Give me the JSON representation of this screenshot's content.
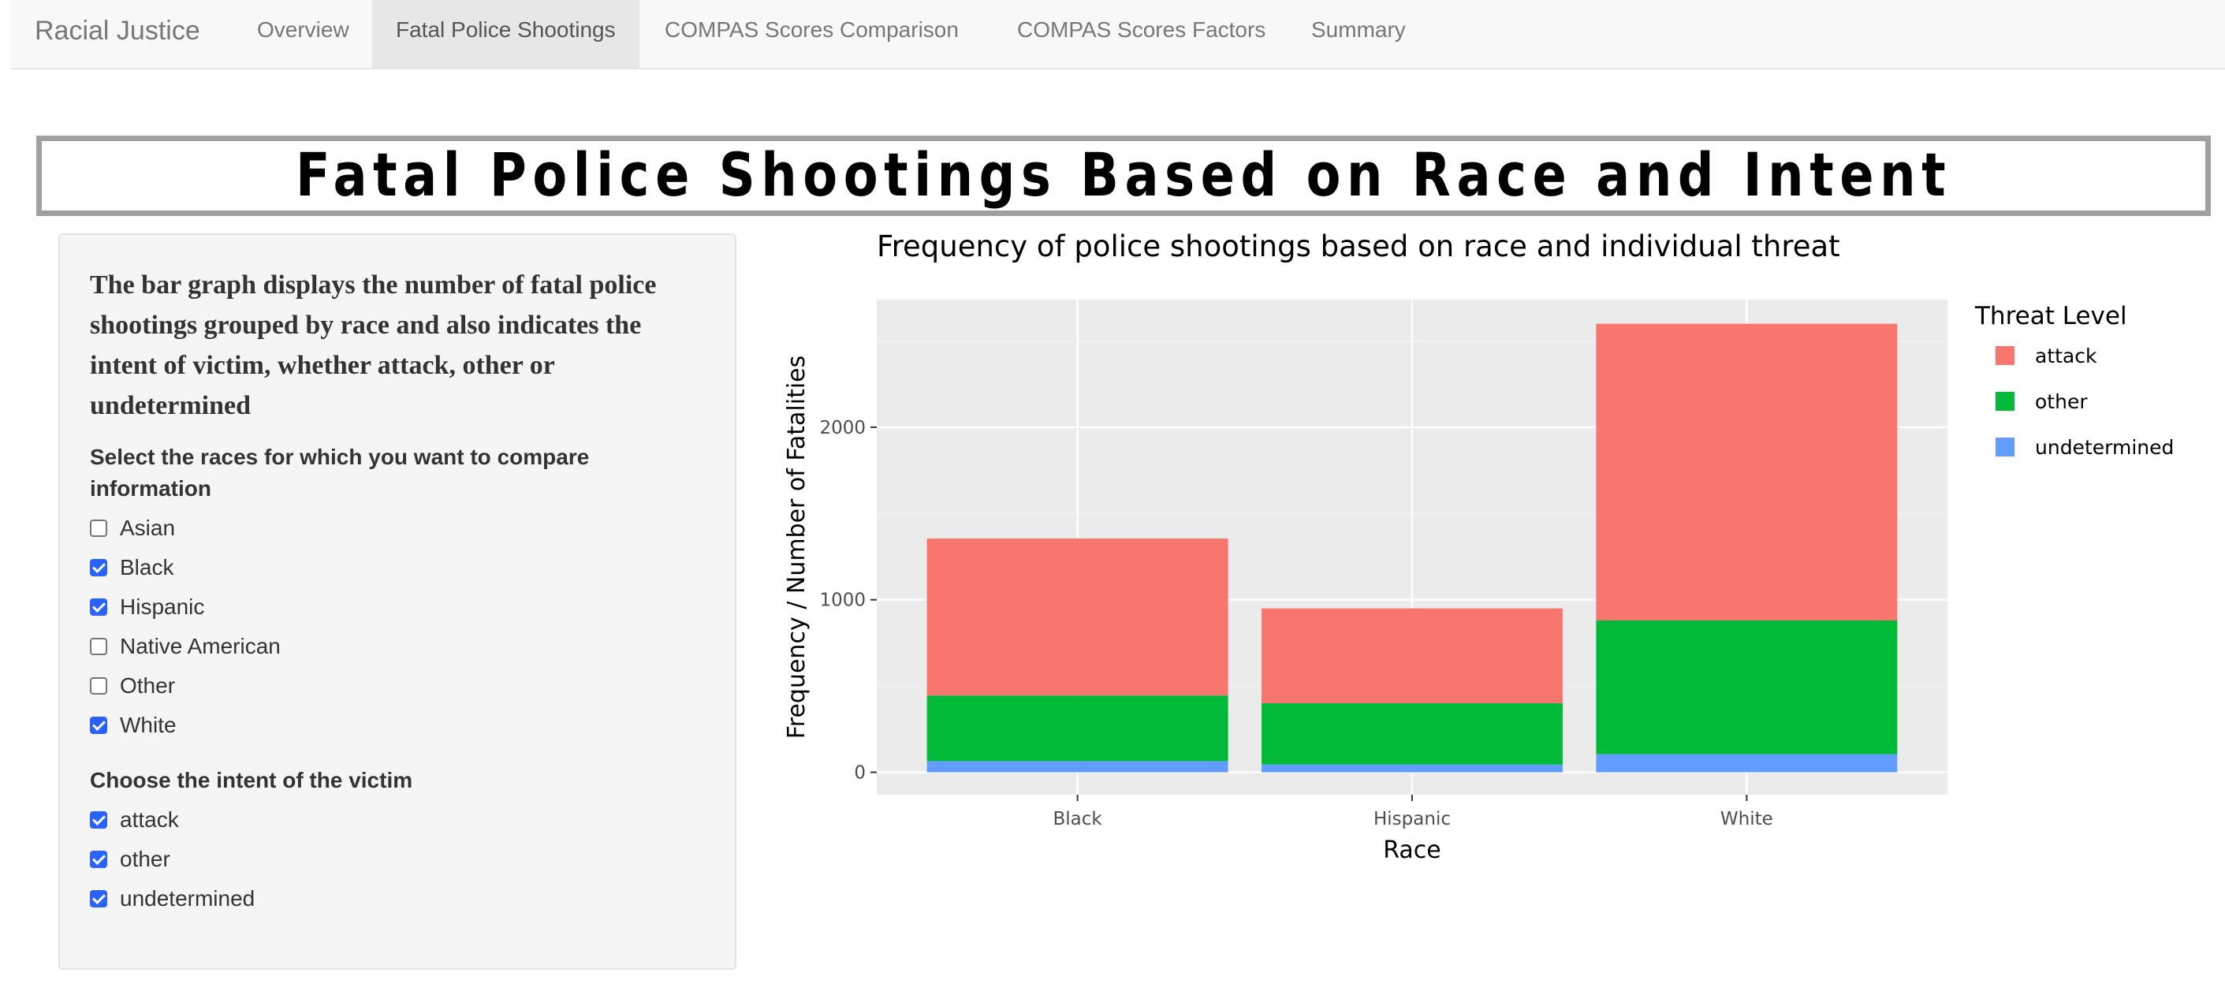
{
  "navbar": {
    "brand": "Racial Justice",
    "tabs": [
      {
        "label": "Overview",
        "active": false
      },
      {
        "label": "Fatal Police Shootings",
        "active": true
      },
      {
        "label": "COMPAS Scores Comparison",
        "active": false
      },
      {
        "label": "COMPAS Scores Factors",
        "active": false
      },
      {
        "label": "Summary",
        "active": false
      }
    ]
  },
  "banner": {
    "title": "Fatal Police Shootings Based on Race and Intent"
  },
  "sidebar": {
    "description": "The bar graph displays the number of fatal police shootings grouped by race and also indicates the intent of victim, whether attack, other or undetermined",
    "race_label": "Select the races for which you want to compare information",
    "races": [
      {
        "label": "Asian",
        "checked": false
      },
      {
        "label": "Black",
        "checked": true
      },
      {
        "label": "Hispanic",
        "checked": true
      },
      {
        "label": "Native American",
        "checked": false
      },
      {
        "label": "Other",
        "checked": false
      },
      {
        "label": "White",
        "checked": true
      }
    ],
    "intent_label": "Choose the intent of the victim",
    "intents": [
      {
        "label": "attack",
        "checked": true
      },
      {
        "label": "other",
        "checked": true
      },
      {
        "label": "undetermined",
        "checked": true
      }
    ]
  },
  "chart_data": {
    "type": "bar",
    "stacked": true,
    "title": "Frequency of police shootings based on race and individual threat",
    "xlabel": "Race",
    "ylabel": "Frequency / Number of Fatalities",
    "categories": [
      "Black",
      "Hispanic",
      "White"
    ],
    "ylim": [
      -130,
      2740
    ],
    "yticks": [
      0,
      1000,
      2000
    ],
    "legend_title": "Threat Level",
    "legend_position": "right",
    "grid": true,
    "series": [
      {
        "name": "undetermined",
        "color": "#619cff",
        "values": [
          65,
          45,
          105
        ]
      },
      {
        "name": "other",
        "color": "#00ba38",
        "values": [
          380,
          355,
          775
        ]
      },
      {
        "name": "attack",
        "color": "#f8766d",
        "values": [
          910,
          550,
          1720
        ]
      }
    ],
    "legend_order": [
      "attack",
      "other",
      "undetermined"
    ]
  }
}
